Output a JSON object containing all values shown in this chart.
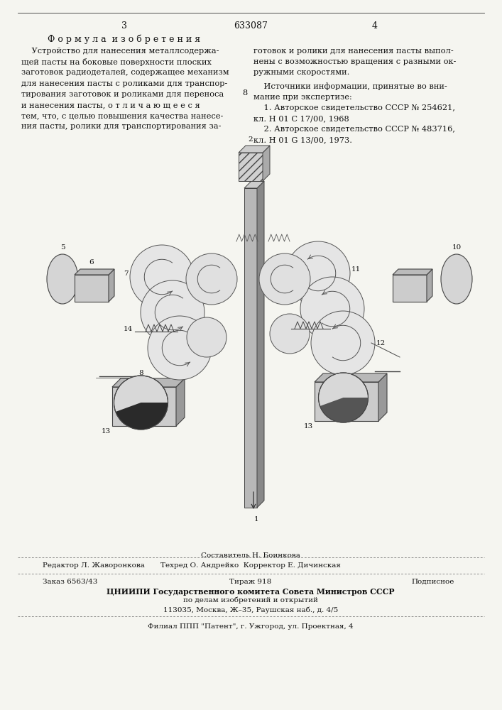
{
  "page_number_left": "3",
  "patent_number": "633087",
  "page_number_right": "4",
  "section_title": "Ф о р м у л а  и з о б р е т е н и я",
  "left_col_lines": [
    "    Устройство для нанесения металлсодержа-",
    "щей пасты на боковые поверхности плоских",
    "заготовок радиодеталей, содержащее механизм",
    "для нанесения пасты с роликами для транспор-",
    "тирования заготовок и роликами для переноса",
    "и нанесения пасты, о т л и ч а ю щ е е с я",
    "тем, что, с целью повышения качества нанесе-",
    "ния пасты, ролики для транспортирования за-"
  ],
  "right_col_lines_top": [
    "готовок и ролики для нанесения пасты выпол-",
    "нены с возможностью вращения с разными ок-",
    "ружными скоростями."
  ],
  "sources_line1": "    Источники информации, принятые во вни-",
  "sources_line2": "мание при экспертизе:",
  "source1a": "    1. Авторское свидетельство СССР № 254621,",
  "source1b": "кл. Н 01 С 17/00, 1968",
  "source2a": "    2. Авторское свидетельство СССР № 483716,",
  "source2b": "кл. Н 01 G 13/00, 1973.",
  "col_marker": "8",
  "footer_editor_label": "Редактор Л. Жаворонкова",
  "footer_composer_label": "Составитель Н. Боинкова",
  "footer_tech_label": "Техред О. Андрейко  Корректор Е. Дичинская",
  "footer_order": "Заказ 6563/43",
  "footer_tirazh": "Тираж 918",
  "footer_podpisnoe": "Подписное",
  "footer_tsniipi": "ЦНИИПИ Государственного комитета Совета Министров СССР",
  "footer_dela": "по делам изобретений и открытий",
  "footer_address": "113035, Москва, Ж–35, Раушская наб., д. 4/5",
  "footer_filial": "Филиал ППП \"Патент\", г. Ужгород, ул. Проектная, 4",
  "bg_color": "#f5f5f0"
}
